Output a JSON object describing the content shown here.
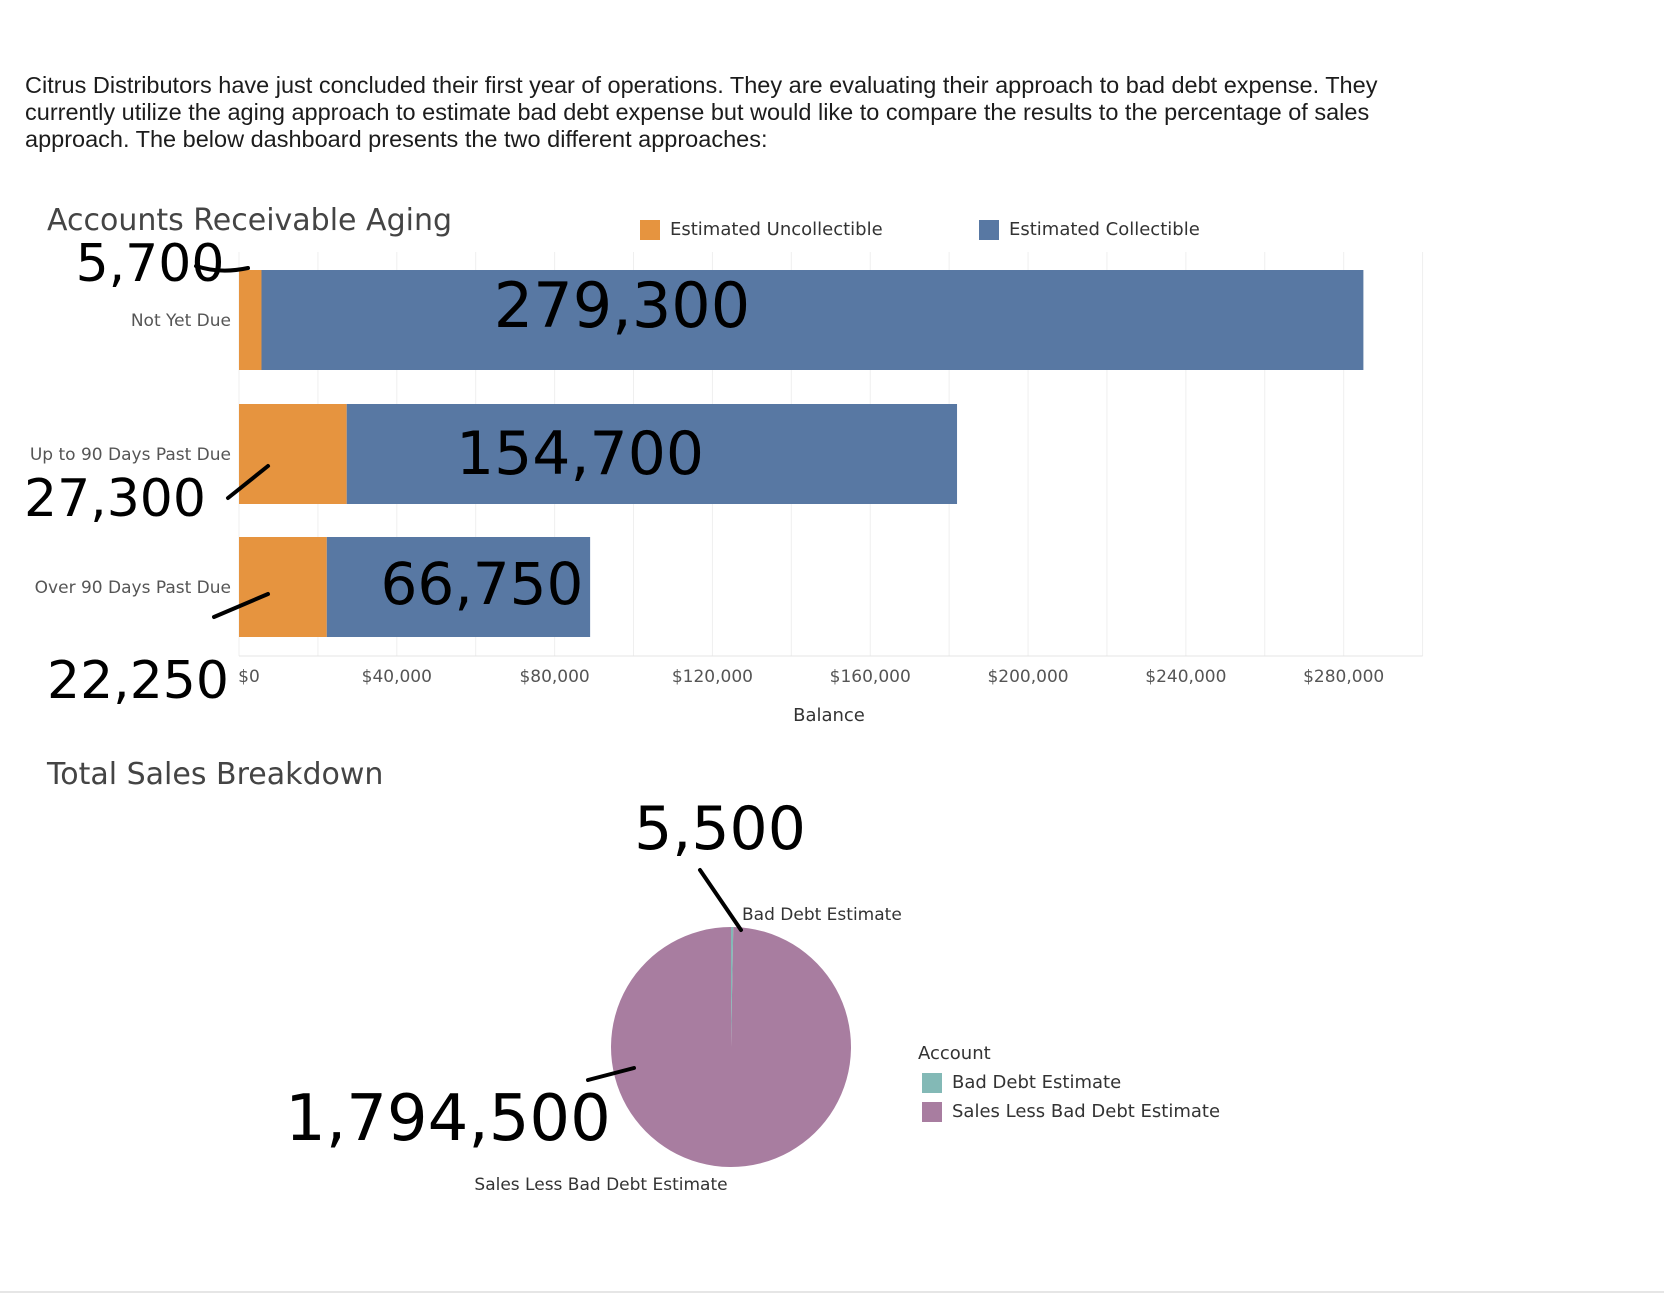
{
  "intro_text": "Citrus Distributors have just concluded their first year of operations. They are evaluating their approach to bad debt expense. They currently utilize the aging approach to estimate bad debt expense but would like to compare the results to the percentage of sales approach. The below dashboard presents the two different approaches:",
  "colors": {
    "uncollectible": "#E6943F",
    "collectible": "#5878A3",
    "bad_debt": "#83B9B6",
    "sales_less": "#A87DA0"
  },
  "chart_data": [
    {
      "type": "bar",
      "orientation": "horizontal-stacked",
      "title": "Accounts Receivable Aging",
      "categories": [
        "Not Yet Due",
        "Up to 90 Days Past Due",
        "Over 90 Days Past Due"
      ],
      "series": [
        {
          "name": "Estimated Uncollectible",
          "values": [
            5700,
            27300,
            22250
          ]
        },
        {
          "name": "Estimated Collectible",
          "values": [
            279300,
            154700,
            66750
          ]
        }
      ],
      "xlabel": "Balance",
      "xlim": [
        0,
        300000
      ],
      "ticks": [
        0,
        40000,
        80000,
        120000,
        160000,
        200000,
        240000,
        280000
      ],
      "tick_labels": [
        "$0",
        "$40,000",
        "$80,000",
        "$120,000",
        "$160,000",
        "$200,000",
        "$240,000",
        "$280,000"
      ],
      "handwritten_annotations": {
        "uncollectible": [
          "5,700",
          "27,300",
          "22,250"
        ],
        "collectible": [
          "279,300",
          "154,700",
          "66,750"
        ]
      },
      "legend_position": "top"
    },
    {
      "type": "pie",
      "title": "Total Sales Breakdown",
      "legend_title": "Account",
      "labels": [
        "Bad Debt Estimate",
        "Sales Less Bad Debt Estimate"
      ],
      "values": [
        5500,
        1794500
      ],
      "handwritten_annotations": [
        "5,500",
        "1,794,500"
      ],
      "legend_position": "right"
    }
  ]
}
